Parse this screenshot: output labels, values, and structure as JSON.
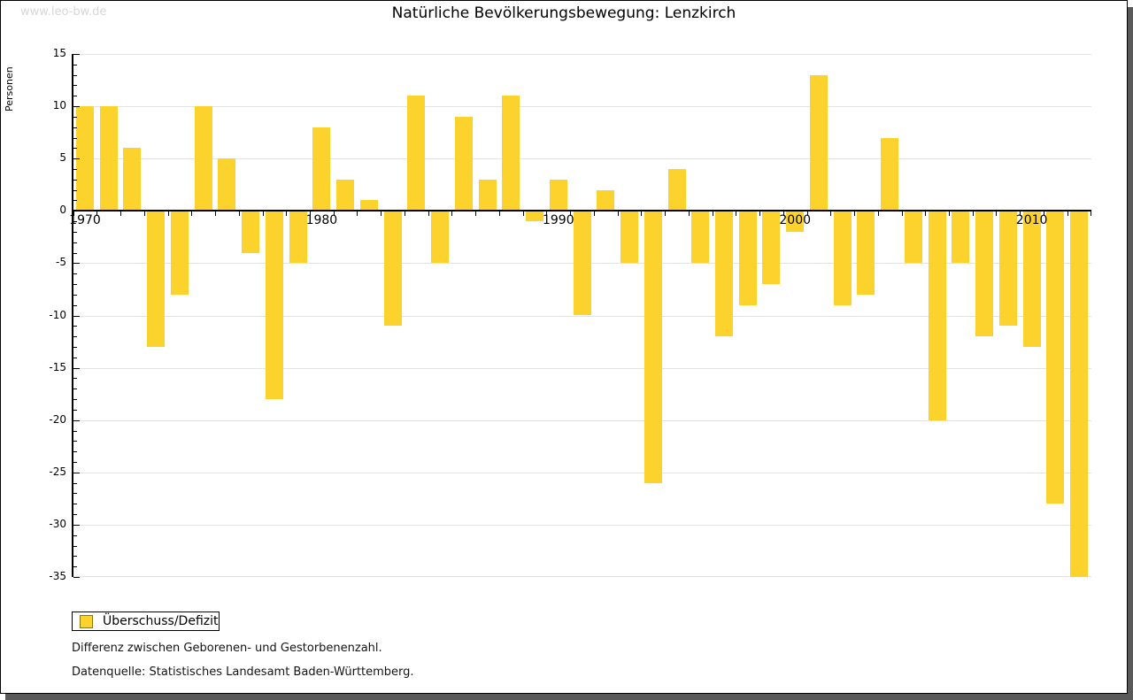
{
  "watermark": "www.leo-bw.de",
  "header": {
    "title": "Natürliche Bevölkerungsbewegung: Lenzkirch"
  },
  "legend": {
    "label": "Überschuss/Defizit"
  },
  "footnotes": {
    "line1": "Differenz zwischen Geborenen- und Gestorbenenzahl.",
    "line2": "Datenquelle: Statistisches Landesamt Baden-Württemberg."
  },
  "colors": {
    "bar": "#FCD32C",
    "legend_swatch_border": "#8d7506",
    "grid": "#e3e3e3",
    "axis": "#000000",
    "watermark": "#d7d7d7",
    "shadow": "#595959"
  },
  "chart_data": {
    "type": "bar",
    "title": "Natürliche Bevölkerungsbewegung: Lenzkirch",
    "xlabel": "",
    "ylabel": "Personen",
    "ylim": [
      -35,
      15
    ],
    "y_major_step": 5,
    "y_minor_step": 1,
    "grid": "horizontal",
    "legend_position": "bottom-left",
    "series_name": "Überschuss/Defizit",
    "x": [
      1970,
      1971,
      1972,
      1973,
      1974,
      1975,
      1976,
      1977,
      1978,
      1979,
      1980,
      1981,
      1982,
      1983,
      1984,
      1985,
      1986,
      1987,
      1988,
      1989,
      1990,
      1991,
      1992,
      1993,
      1994,
      1995,
      1996,
      1997,
      1998,
      1999,
      2000,
      2001,
      2002,
      2003,
      2004,
      2005,
      2006,
      2007,
      2008,
      2009,
      2010,
      2011,
      2012
    ],
    "values": [
      10,
      10,
      6,
      -13,
      -8,
      10,
      5,
      -4,
      -18,
      -5,
      8,
      3,
      1,
      -11,
      11,
      -5,
      9,
      3,
      11,
      -1,
      3,
      -10,
      2,
      -5,
      -26,
      4,
      -5,
      -12,
      -9,
      -7,
      -2,
      13,
      -9,
      -8,
      7,
      -5,
      -20,
      -5,
      -12,
      -11,
      -13,
      -28,
      -35
    ],
    "x_tick_label_years": [
      1970,
      1980,
      1990,
      2000,
      2010
    ]
  }
}
